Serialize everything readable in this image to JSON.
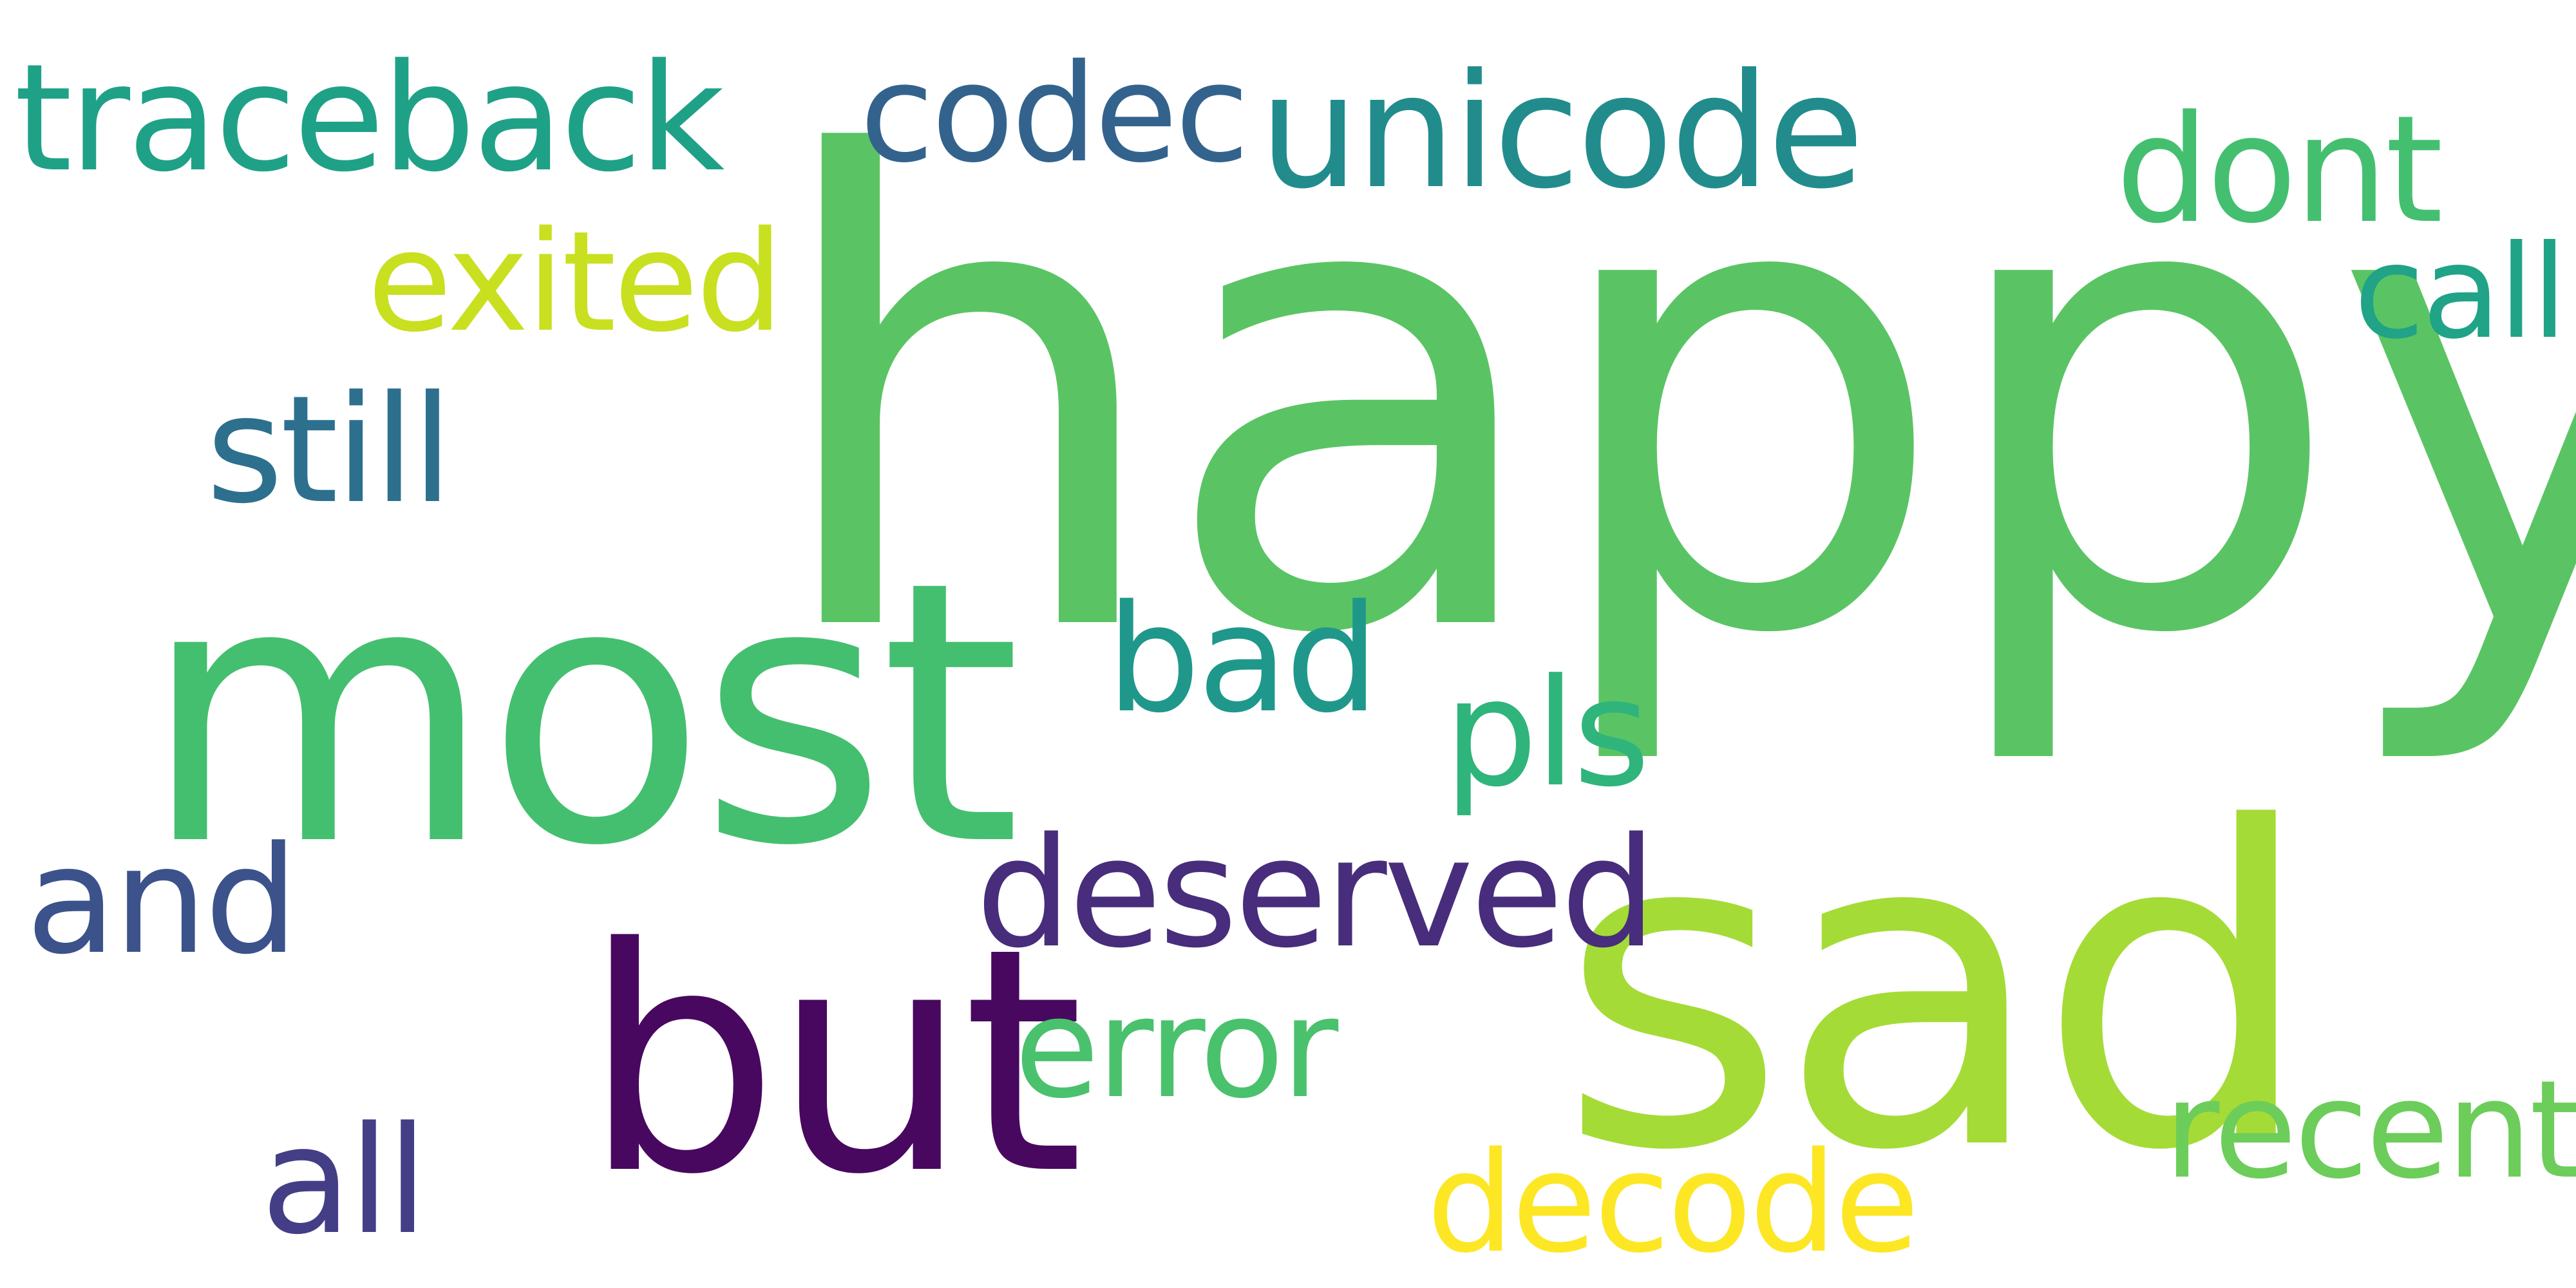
{
  "words": {
    "happy": {
      "text": "happy",
      "color": "#5ac464"
    },
    "most": {
      "text": "most",
      "color": "#44bf70"
    },
    "sad": {
      "text": "sad",
      "color": "#a5db36"
    },
    "but": {
      "text": "but",
      "color": "#48085f"
    },
    "traceback": {
      "text": "traceback",
      "color": "#1fa187"
    },
    "codec": {
      "text": "codec",
      "color": "#33638d"
    },
    "unicode": {
      "text": "unicode",
      "color": "#228c8d"
    },
    "dont": {
      "text": "dont",
      "color": "#44bf70"
    },
    "exited": {
      "text": "exited",
      "color": "#c8e020"
    },
    "call": {
      "text": "call",
      "color": "#20a386"
    },
    "still": {
      "text": "still",
      "color": "#2d708e"
    },
    "bad": {
      "text": "bad",
      "color": "#1f988b"
    },
    "pls": {
      "text": "pls",
      "color": "#2fb47c"
    },
    "and": {
      "text": "and",
      "color": "#3b528b"
    },
    "deserved": {
      "text": "deserved",
      "color": "#472d7b"
    },
    "error": {
      "text": "error",
      "color": "#4ac16d"
    },
    "recent": {
      "text": "recent",
      "color": "#6ccd5a"
    },
    "all": {
      "text": "all",
      "color": "#433e85"
    },
    "decode": {
      "text": "decode",
      "color": "#fde725"
    }
  }
}
